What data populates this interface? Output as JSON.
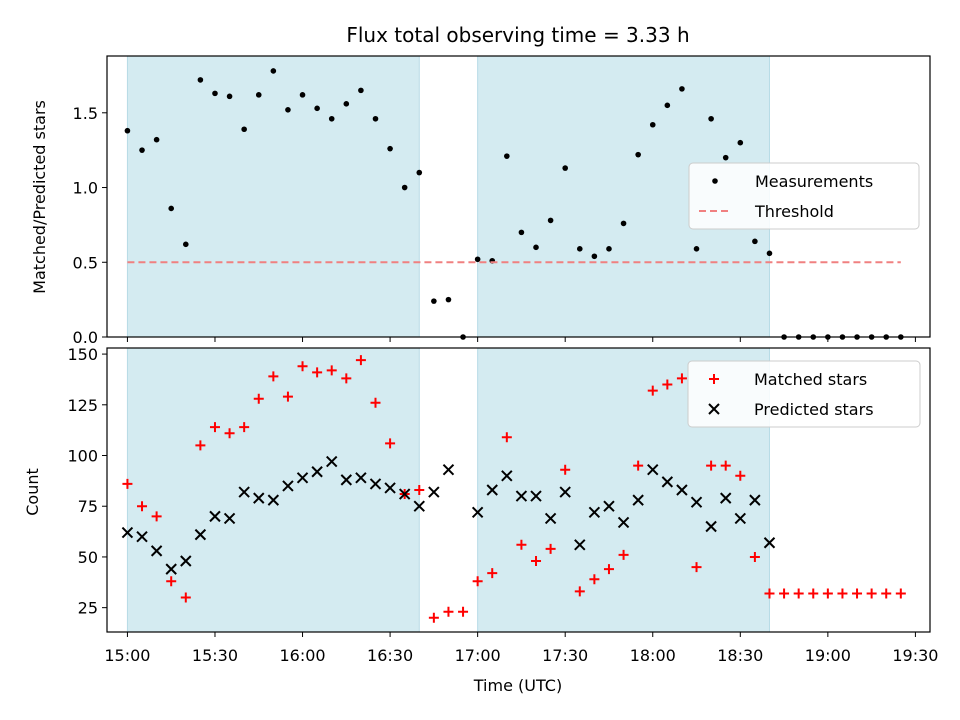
{
  "figure": {
    "title": "Flux total observing time = 3.33 h",
    "xlabel": "Time (UTC)",
    "x_ticks": [
      "15:00",
      "15:30",
      "16:00",
      "16:30",
      "17:00",
      "17:30",
      "18:00",
      "18:30",
      "19:00",
      "19:30"
    ]
  },
  "chart_data": [
    {
      "type": "scatter",
      "ylabel": "Matched/Predicted stars",
      "xlim": [
        "14:53",
        "19:35"
      ],
      "ylim": [
        0,
        1.88
      ],
      "y_ticks": [
        "0.0",
        "0.5",
        "1.0",
        "1.5"
      ],
      "shaded_intervals": [
        [
          "15:00",
          "16:40"
        ],
        [
          "17:00",
          "18:40"
        ]
      ],
      "shade_color": "#d4ebf1",
      "grid": false,
      "legend_position": "right",
      "series": [
        {
          "name": "Measurements",
          "color": "#000000",
          "marker": "dot",
          "x": [
            "15:00",
            "15:05",
            "15:10",
            "15:15",
            "15:20",
            "15:25",
            "15:30",
            "15:35",
            "15:40",
            "15:45",
            "15:50",
            "15:55",
            "16:00",
            "16:05",
            "16:10",
            "16:15",
            "16:20",
            "16:25",
            "16:30",
            "16:35",
            "16:40",
            "16:45",
            "16:50",
            "16:55",
            "17:00",
            "17:05",
            "17:10",
            "17:15",
            "17:20",
            "17:25",
            "17:30",
            "17:35",
            "17:40",
            "17:45",
            "17:50",
            "17:55",
            "18:00",
            "18:05",
            "18:10",
            "18:15",
            "18:20",
            "18:25",
            "18:30",
            "18:35",
            "18:40",
            "18:45",
            "18:50",
            "18:55",
            "19:00",
            "19:05",
            "19:10",
            "19:15",
            "19:20",
            "19:25"
          ],
          "y": [
            1.38,
            1.25,
            1.32,
            0.86,
            0.62,
            1.72,
            1.63,
            1.61,
            1.39,
            1.62,
            1.78,
            1.52,
            1.62,
            1.53,
            1.46,
            1.56,
            1.65,
            1.46,
            1.26,
            1.0,
            1.1,
            0.24,
            0.25,
            0.0,
            0.52,
            0.51,
            1.21,
            0.7,
            0.6,
            0.78,
            1.13,
            0.59,
            0.54,
            0.59,
            0.76,
            1.22,
            1.42,
            1.55,
            1.66,
            0.59,
            1.46,
            1.2,
            1.3,
            0.64,
            0.56,
            0.0,
            0.0,
            0.0,
            0.0,
            0.0,
            0.0,
            0.0,
            0.0,
            0.0
          ]
        },
        {
          "name": "Threshold",
          "color": "#f08080",
          "style": "dashed",
          "x": [
            "15:00",
            "19:25"
          ],
          "y": [
            0.5,
            0.5
          ]
        }
      ]
    },
    {
      "type": "scatter",
      "ylabel": "Count",
      "xlim": [
        "14:53",
        "19:35"
      ],
      "ylim": [
        13,
        153
      ],
      "y_ticks": [
        "25",
        "50",
        "75",
        "100",
        "125",
        "150"
      ],
      "shaded_intervals": [
        [
          "15:00",
          "16:40"
        ],
        [
          "17:00",
          "18:40"
        ]
      ],
      "shade_color": "#d4ebf1",
      "grid": false,
      "legend_position": "top-right",
      "series": [
        {
          "name": "Matched stars",
          "color": "#ff0000",
          "marker": "plus",
          "x": [
            "15:00",
            "15:05",
            "15:10",
            "15:15",
            "15:20",
            "15:25",
            "15:30",
            "15:35",
            "15:40",
            "15:45",
            "15:50",
            "15:55",
            "16:00",
            "16:05",
            "16:10",
            "16:15",
            "16:20",
            "16:25",
            "16:30",
            "16:35",
            "16:40",
            "16:45",
            "16:50",
            "16:55",
            "17:00",
            "17:05",
            "17:10",
            "17:15",
            "17:20",
            "17:25",
            "17:30",
            "17:35",
            "17:40",
            "17:45",
            "17:50",
            "17:55",
            "18:00",
            "18:05",
            "18:10",
            "18:15",
            "18:20",
            "18:25",
            "18:30",
            "18:35",
            "18:40",
            "18:45",
            "18:50",
            "18:55",
            "19:00",
            "19:05",
            "19:10",
            "19:15",
            "19:20",
            "19:25"
          ],
          "y": [
            86,
            75,
            70,
            38,
            30,
            105,
            114,
            111,
            114,
            128,
            139,
            129,
            144,
            141,
            142,
            138,
            147,
            126,
            106,
            81,
            83,
            20,
            23,
            23,
            38,
            42,
            109,
            56,
            48,
            54,
            93,
            33,
            39,
            44,
            51,
            95,
            132,
            135,
            138,
            45,
            95,
            95,
            90,
            50,
            32,
            32,
            32,
            32,
            32,
            32,
            32,
            32,
            32,
            32
          ]
        },
        {
          "name": "Predicted stars",
          "color": "#000000",
          "marker": "x",
          "x": [
            "15:00",
            "15:05",
            "15:10",
            "15:15",
            "15:20",
            "15:25",
            "15:30",
            "15:35",
            "15:40",
            "15:45",
            "15:50",
            "15:55",
            "16:00",
            "16:05",
            "16:10",
            "16:15",
            "16:20",
            "16:25",
            "16:30",
            "16:35",
            "16:40",
            "16:45",
            "16:50",
            "17:00",
            "17:05",
            "17:10",
            "17:15",
            "17:20",
            "17:25",
            "17:30",
            "17:35",
            "17:40",
            "17:45",
            "17:50",
            "17:55",
            "18:00",
            "18:05",
            "18:10",
            "18:15",
            "18:20",
            "18:25",
            "18:30",
            "18:35",
            "18:40"
          ],
          "y": [
            62,
            60,
            53,
            44,
            48,
            61,
            70,
            69,
            82,
            79,
            78,
            85,
            89,
            92,
            97,
            88,
            89,
            86,
            84,
            81,
            75,
            82,
            93,
            72,
            83,
            90,
            80,
            80,
            69,
            82,
            56,
            72,
            75,
            67,
            78,
            93,
            87,
            83,
            77,
            65,
            79,
            69,
            78,
            57
          ]
        }
      ]
    }
  ]
}
